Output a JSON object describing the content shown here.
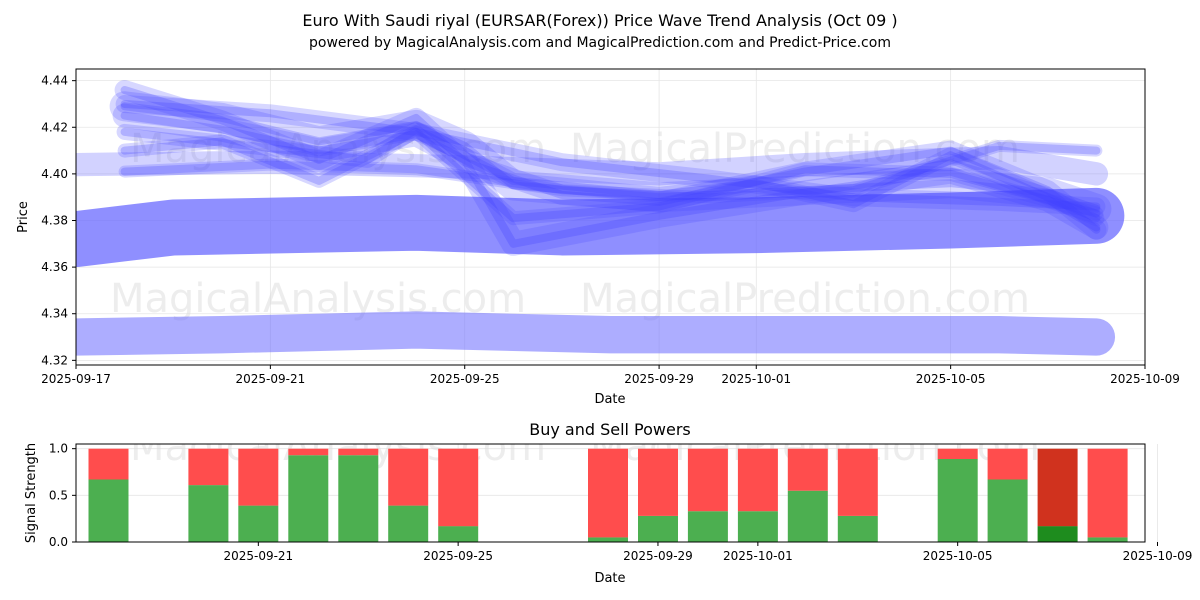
{
  "chart_data": [
    {
      "type": "line",
      "title": "Euro With Saudi riyal (EURSAR(Forex)) Price Wave Trend Analysis (Oct 09 )",
      "subtitle": "powered by MagicalAnalysis.com and MagicalPrediction.com and Predict-Price.com",
      "xlabel": "Date",
      "ylabel": "Price",
      "xlim": [
        "2025-09-17",
        "2025-10-09"
      ],
      "ylim": [
        4.318,
        4.445
      ],
      "x_ticks": [
        "2025-09-17",
        "2025-09-21",
        "2025-09-25",
        "2025-09-29",
        "2025-10-01",
        "2025-10-05",
        "2025-10-09"
      ],
      "y_ticks": [
        4.32,
        4.34,
        4.36,
        4.38,
        4.4,
        4.42,
        4.44
      ],
      "watermarks": [
        "MagicalAnalysis.com",
        "MagicalPrediction.com"
      ],
      "bands": [
        {
          "name": "support-band",
          "x": [
            "2025-09-17",
            "2025-09-20",
            "2025-09-24",
            "2025-09-28",
            "2025-10-02",
            "2025-10-06",
            "2025-10-08"
          ],
          "y": [
            4.33,
            4.331,
            4.333,
            4.331,
            4.331,
            4.331,
            4.33
          ],
          "width": 0.016,
          "opacity": 0.55
        },
        {
          "name": "main-band",
          "x": [
            "2025-09-17",
            "2025-09-19",
            "2025-09-24",
            "2025-09-27",
            "2025-10-01",
            "2025-10-05",
            "2025-10-08"
          ],
          "y": [
            4.372,
            4.377,
            4.379,
            4.377,
            4.378,
            4.38,
            4.382
          ],
          "width": 0.024,
          "opacity": 0.75
        },
        {
          "name": "upper-band",
          "x": [
            "2025-09-17",
            "2025-09-21",
            "2025-09-25",
            "2025-09-29",
            "2025-10-02",
            "2025-10-06",
            "2025-10-08"
          ],
          "y": [
            4.404,
            4.405,
            4.403,
            4.4,
            4.404,
            4.407,
            4.4
          ],
          "width": 0.01,
          "opacity": 0.3
        }
      ],
      "series": [
        {
          "name": "wave-1",
          "x": [
            "2025-09-18",
            "2025-09-20",
            "2025-09-22",
            "2025-09-24",
            "2025-09-25",
            "2025-09-26",
            "2025-09-29",
            "2025-10-02",
            "2025-10-05",
            "2025-10-07",
            "2025-10-08"
          ],
          "y": [
            4.429,
            4.424,
            4.414,
            4.421,
            4.412,
            4.395,
            4.39,
            4.393,
            4.396,
            4.392,
            4.385
          ]
        },
        {
          "name": "wave-2",
          "x": [
            "2025-09-18",
            "2025-09-20",
            "2025-09-22",
            "2025-09-24",
            "2025-09-25",
            "2025-09-26",
            "2025-09-29",
            "2025-10-02",
            "2025-10-05",
            "2025-10-07",
            "2025-10-08"
          ],
          "y": [
            4.425,
            4.419,
            4.41,
            4.417,
            4.406,
            4.37,
            4.382,
            4.392,
            4.401,
            4.389,
            4.377
          ]
        },
        {
          "name": "wave-3",
          "x": [
            "2025-09-18",
            "2025-09-20",
            "2025-09-22",
            "2025-09-24",
            "2025-09-25",
            "2025-09-27",
            "2025-09-29",
            "2025-10-02",
            "2025-10-05",
            "2025-10-07",
            "2025-10-08"
          ],
          "y": [
            4.436,
            4.423,
            4.406,
            4.424,
            4.405,
            4.391,
            4.388,
            4.401,
            4.41,
            4.393,
            4.376
          ]
        },
        {
          "name": "wave-4",
          "x": [
            "2025-09-18",
            "2025-09-21",
            "2025-09-23",
            "2025-09-24",
            "2025-09-26",
            "2025-09-29",
            "2025-10-01",
            "2025-10-03",
            "2025-10-05",
            "2025-10-08"
          ],
          "y": [
            4.418,
            4.411,
            4.406,
            4.419,
            4.397,
            4.391,
            4.396,
            4.387,
            4.408,
            4.381
          ]
        },
        {
          "name": "wave-5",
          "x": [
            "2025-09-18",
            "2025-09-20",
            "2025-09-22",
            "2025-09-24",
            "2025-09-26",
            "2025-09-29",
            "2025-10-02",
            "2025-10-05",
            "2025-10-08"
          ],
          "y": [
            4.41,
            4.414,
            4.397,
            4.418,
            4.381,
            4.386,
            4.402,
            4.4,
            4.383
          ]
        },
        {
          "name": "wave-6",
          "x": [
            "2025-09-18",
            "2025-09-21",
            "2025-09-24",
            "2025-09-27",
            "2025-09-30",
            "2025-10-03",
            "2025-10-06",
            "2025-10-08"
          ],
          "y": [
            4.401,
            4.404,
            4.402,
            4.393,
            4.39,
            4.393,
            4.412,
            4.41
          ]
        },
        {
          "name": "wave-7",
          "x": [
            "2025-09-18",
            "2025-09-21",
            "2025-09-24",
            "2025-09-27",
            "2025-09-30",
            "2025-10-03",
            "2025-10-06",
            "2025-10-08"
          ],
          "y": [
            4.43,
            4.426,
            4.418,
            4.405,
            4.398,
            4.39,
            4.388,
            4.386
          ]
        }
      ]
    },
    {
      "type": "bar",
      "title": "Buy and Sell Powers",
      "xlabel": "Date",
      "ylabel": "Signal Strength",
      "ylim": [
        0,
        1.05
      ],
      "xlim": [
        "2025-09-17",
        "2025-10-09"
      ],
      "x_ticks": [
        "2025-09-21",
        "2025-09-25",
        "2025-09-29",
        "2025-10-01",
        "2025-10-05",
        "2025-10-09"
      ],
      "y_ticks": [
        0.0,
        0.5,
        1.0
      ],
      "buy_color": "#4caf50",
      "sell_color": "#ff4d4d",
      "highlight_buy_color": "#1e8c1e",
      "highlight_sell_color": "#d0321e",
      "bars": [
        {
          "date": "2025-09-18",
          "buy": 0.67,
          "sell": 0.33
        },
        {
          "date": "2025-09-20",
          "buy": 0.61,
          "sell": 0.39
        },
        {
          "date": "2025-09-21",
          "buy": 0.39,
          "sell": 0.61
        },
        {
          "date": "2025-09-22",
          "buy": 0.93,
          "sell": 0.07
        },
        {
          "date": "2025-09-23",
          "buy": 0.93,
          "sell": 0.07
        },
        {
          "date": "2025-09-24",
          "buy": 0.39,
          "sell": 0.61
        },
        {
          "date": "2025-09-25",
          "buy": 0.17,
          "sell": 0.83
        },
        {
          "date": "2025-09-28",
          "buy": 0.05,
          "sell": 0.95
        },
        {
          "date": "2025-09-29",
          "buy": 0.28,
          "sell": 0.72
        },
        {
          "date": "2025-09-30",
          "buy": 0.33,
          "sell": 0.67
        },
        {
          "date": "2025-10-01",
          "buy": 0.33,
          "sell": 0.67
        },
        {
          "date": "2025-10-02",
          "buy": 0.55,
          "sell": 0.45
        },
        {
          "date": "2025-10-03",
          "buy": 0.28,
          "sell": 0.72
        },
        {
          "date": "2025-10-05",
          "buy": 0.89,
          "sell": 0.11
        },
        {
          "date": "2025-10-06",
          "buy": 0.67,
          "sell": 0.33
        },
        {
          "date": "2025-10-07",
          "buy": 0.17,
          "sell": 0.83,
          "highlight": true
        },
        {
          "date": "2025-10-08",
          "buy": 0.05,
          "sell": 0.95
        }
      ]
    }
  ]
}
